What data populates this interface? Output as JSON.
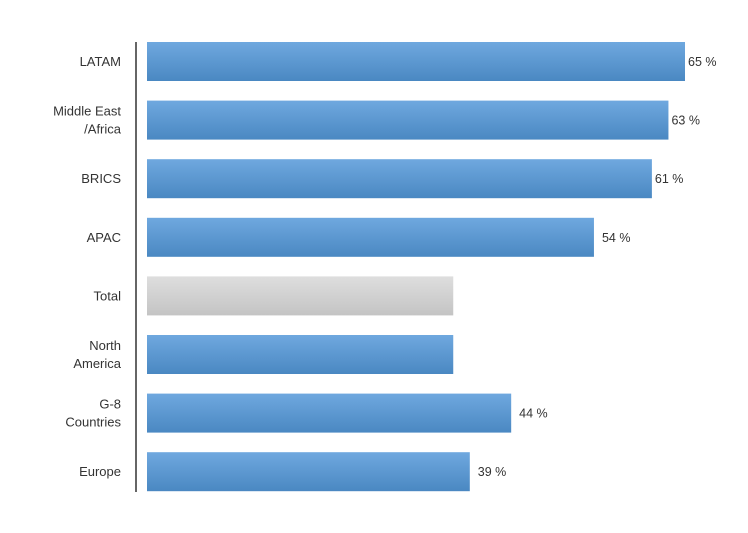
{
  "chart_data": {
    "type": "bar",
    "orientation": "horizontal",
    "categories": [
      "LATAM",
      "Middle East /Africa",
      "BRICS",
      "APAC",
      "Total",
      "North America",
      "G-8 Countries",
      "Europe"
    ],
    "values": [
      65,
      63,
      61,
      54,
      37,
      37,
      44,
      39
    ],
    "data_labels": [
      "65 %",
      "63 %",
      "61 %",
      "54 %",
      "",
      "",
      "44 %",
      "39 %"
    ],
    "highlight_category": "Total",
    "colors": {
      "bar_top": "#6fa8df",
      "bar_bottom": "#4a88c2",
      "highlight_top": "#dedede",
      "highlight_bottom": "#c4c4c4",
      "axis": "#333333",
      "text": "#333333"
    },
    "xlim": [
      0,
      65
    ],
    "grid": false,
    "legend": "none",
    "title": "",
    "xlabel": "",
    "ylabel": ""
  }
}
